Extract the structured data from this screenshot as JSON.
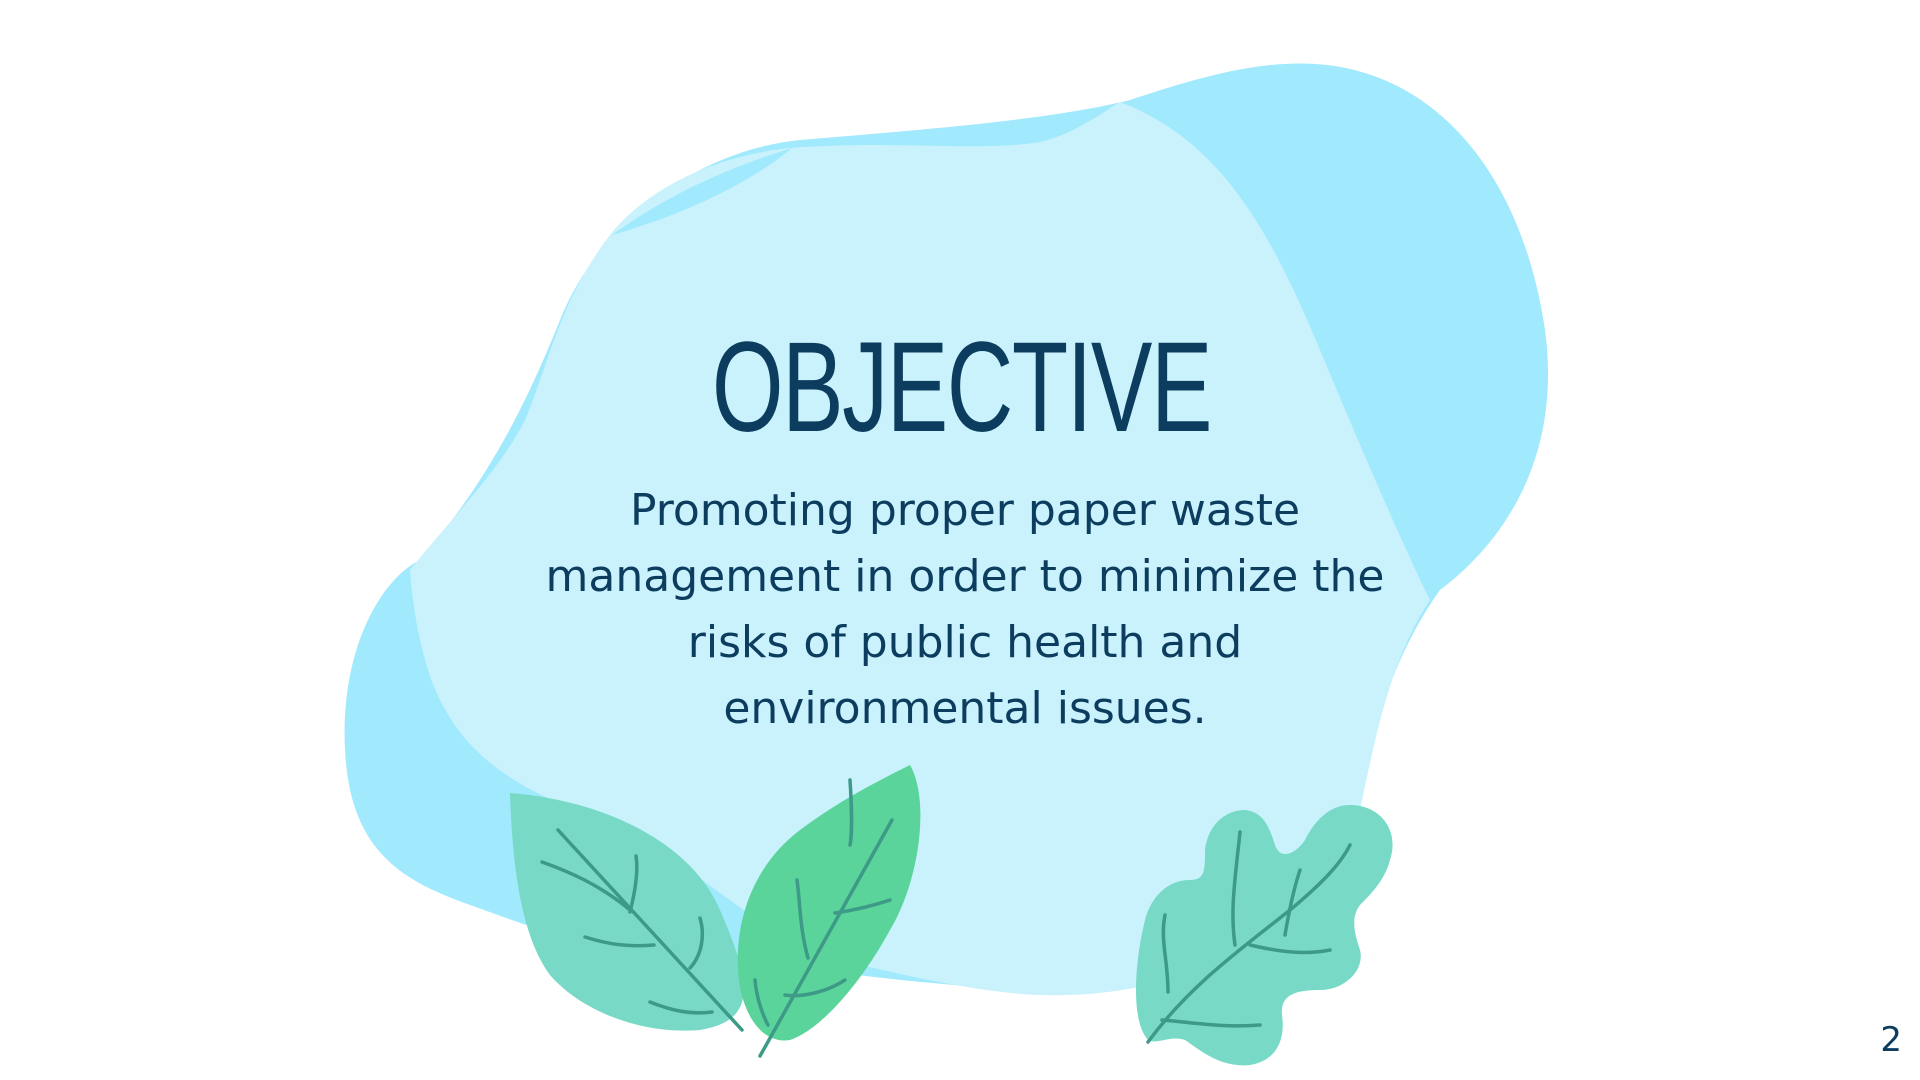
{
  "slide": {
    "title": "OBJECTIVE",
    "body": "Promoting proper paper waste management in order to minimize the risks of public health and environmental issues.",
    "page_number": "2"
  },
  "colors": {
    "blob_light": "#c9f2fd",
    "blob_mid": "#a1e9fd",
    "leaf_teal": "#78dac6",
    "leaf_green": "#5ad49b",
    "leaf_vein": "#3c9a86",
    "text": "#0d3d5e"
  },
  "icons": [
    "blob-background",
    "leaf-left-icon",
    "leaf-center-icon",
    "oak-leaf-icon"
  ]
}
